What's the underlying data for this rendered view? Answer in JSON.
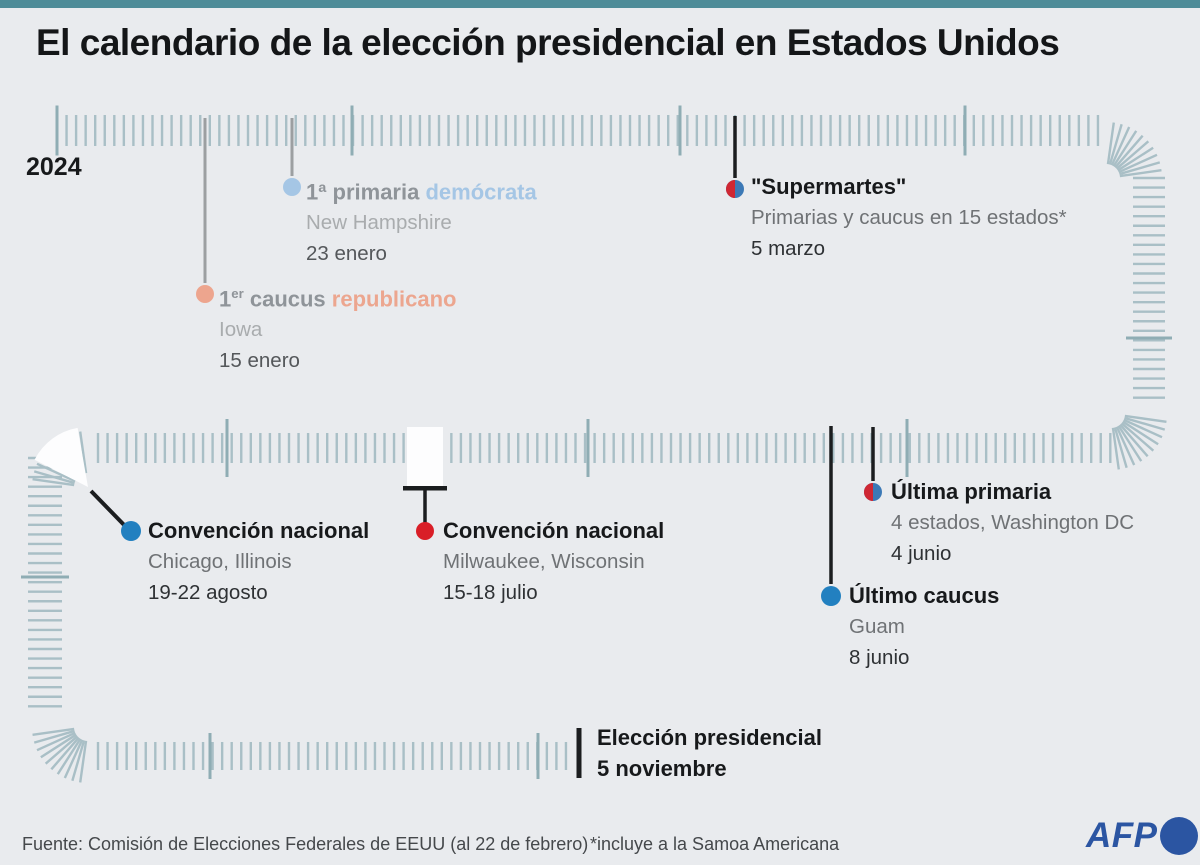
{
  "page": {
    "title": "El calendario de la elección presidencial en Estados Unidos",
    "year_label": "2024"
  },
  "events": [
    {
      "title_num": "1ª",
      "title_sup": "",
      "title": "primaria",
      "title_accent": "demócrata",
      "location": "New Hampshire",
      "date": "23 enero",
      "party": "democrat",
      "status": "past"
    },
    {
      "title_num": "1",
      "title_sup": "er",
      "title": "caucus",
      "title_accent": "republicano",
      "location": "Iowa",
      "date": "15 enero",
      "party": "republican",
      "status": "past"
    },
    {
      "title": "\"Supermartes\"",
      "location": "Primarias y caucus en 15 estados*",
      "date": "5 marzo",
      "party": "both",
      "status": "upcoming"
    },
    {
      "title": "Última primaria",
      "location": "4 estados, Washington DC",
      "date": "4 junio",
      "party": "both",
      "status": "upcoming"
    },
    {
      "title": "Último caucus",
      "location": "Guam",
      "date": "8 junio",
      "party": "democrat",
      "status": "upcoming"
    },
    {
      "title": "Convención nacional",
      "location": "Milwaukee, Wisconsin",
      "date": "15-18 julio",
      "party": "republican",
      "status": "upcoming"
    },
    {
      "title": "Convención nacional",
      "location": "Chicago, Illinois",
      "date": "19-22 agosto",
      "party": "democrat",
      "status": "upcoming"
    },
    {
      "title": "Elección presidencial",
      "date": "5 noviembre",
      "party": "all",
      "status": "upcoming"
    }
  ],
  "footer": {
    "source": "Fuente: Comisión de Elecciones Federales de EEUU (al 22 de febrero)",
    "note": "*incluye a la Samoa Americana",
    "brand": "AFP"
  },
  "colors": {
    "background": "#e9ebee",
    "topbar_teal": "#4e8c98",
    "tick": "#a9bfc6",
    "tick_month": "#8fadb4",
    "connector_gray": "#9c9fa1",
    "connector_black": "#1b1d1f",
    "democrat_light": "#a5c6e5",
    "republican_light": "#eda58e",
    "democrat_blue": "#2280c0",
    "republican_red": "#d91e27",
    "split_red": "#cf2733",
    "split_blue": "#3c79b6",
    "marker_white": "#fdfdfe",
    "afp_blue": "#2b55a2"
  }
}
